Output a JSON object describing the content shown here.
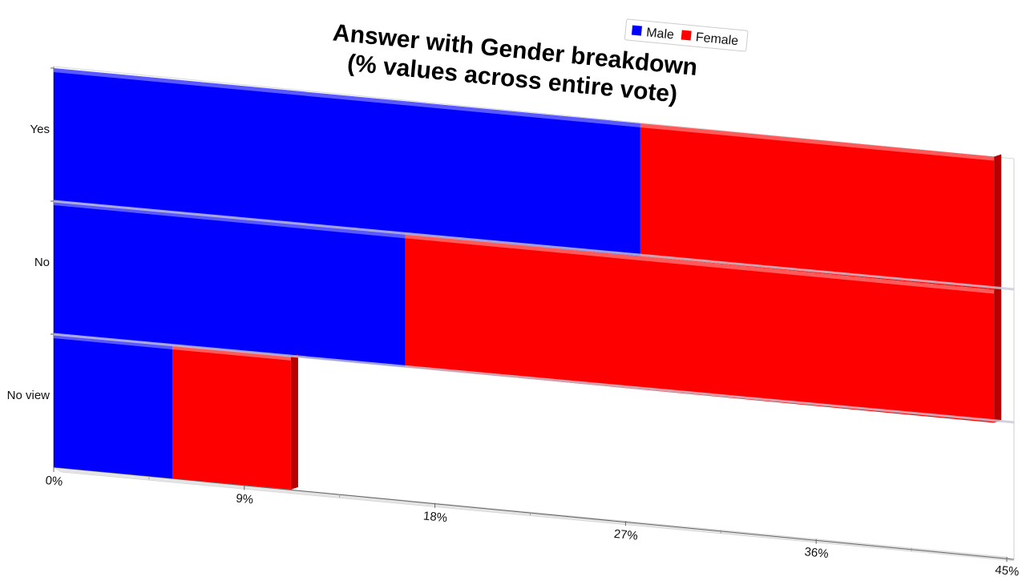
{
  "chart_data": {
    "type": "bar",
    "orientation": "horizontal",
    "stacked": true,
    "title_line1": "Answer with Gender breakdown",
    "title_line2": "(% values across entire vote)",
    "categories": [
      "Yes",
      "No",
      "No view"
    ],
    "series": [
      {
        "name": "Male",
        "color": "#0000ff",
        "values": [
          27.7,
          16.6,
          5.6
        ]
      },
      {
        "name": "Female",
        "color": "#ff0000",
        "values": [
          16.7,
          27.8,
          5.6
        ]
      }
    ],
    "xlim": [
      0,
      45
    ],
    "x_ticks": [
      "0%",
      "9%",
      "18%",
      "27%",
      "36%",
      "45%"
    ],
    "legend_position": "top-right",
    "grid": false
  }
}
